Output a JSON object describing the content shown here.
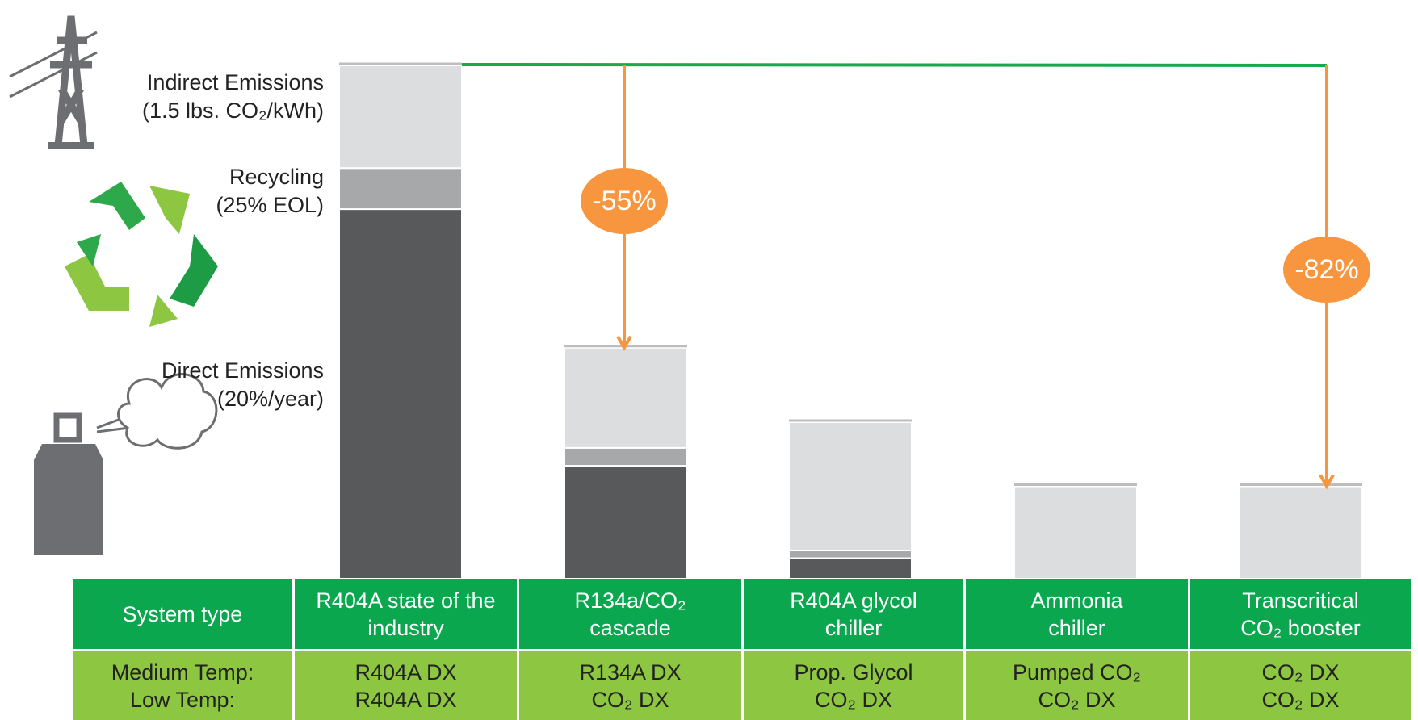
{
  "chart_data": {
    "type": "bar",
    "stacked": true,
    "categories": [
      "R404A state of the\nindustry",
      "R134a/CO₂\ncascade",
      "R404A glycol\nchiller",
      "Ammonia\nchiller",
      "Transcritical\nCO₂ booster"
    ],
    "series": [
      {
        "name": "Direct Emissions",
        "detail": "(20%/year)",
        "color": "#58595b",
        "values": [
          72,
          22,
          4,
          0,
          0
        ]
      },
      {
        "name": "Recycling",
        "detail": "(25% EOL)",
        "color": "#a7a8aa",
        "values": [
          8,
          3.5,
          1.5,
          0,
          0
        ]
      },
      {
        "name": "Indirect Emissions",
        "detail": "(1.5 lbs. CO₂/kWh)",
        "color": "#dcdddf",
        "values": [
          20,
          19.5,
          25,
          18,
          18
        ]
      }
    ],
    "ylim": [
      0,
      100
    ],
    "reference_color": "#1aa84f",
    "annotation_color": "#f7963e",
    "annotations": [
      {
        "category": 1,
        "value": -55,
        "label": "-55%"
      },
      {
        "category": 4,
        "value": -82,
        "label": "-82%"
      }
    ]
  },
  "table": {
    "header_label": "System type",
    "row_labels": [
      "Medium Temp:",
      "Low Temp:"
    ],
    "medium": [
      "R404A DX",
      "R134A DX",
      "Prop. Glycol",
      "Pumped CO₂",
      "CO₂ DX"
    ],
    "low": [
      "R404A DX",
      "CO₂ DX",
      "CO₂ DX",
      "CO₂ DX",
      "CO₂ DX"
    ]
  }
}
